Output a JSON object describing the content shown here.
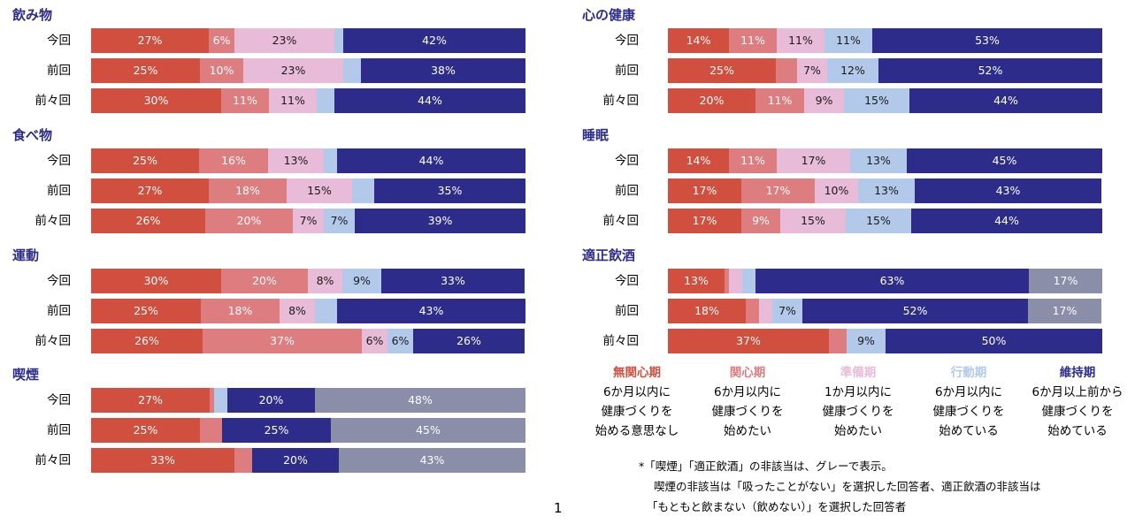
{
  "colors": {
    "mukanshin": "#d04f3e",
    "kanshin": "#de7d80",
    "junbi": "#e8bcd8",
    "kodo": "#b2c9ea",
    "iji": "#2e2c8a",
    "na": "#8b8ea9",
    "title": "#2e2c8a"
  },
  "row_labels": [
    "今回",
    "前回",
    "前々回"
  ],
  "chart_data": {
    "type": "bar",
    "orientation": "horizontal",
    "stacked": true,
    "percent": true,
    "series_names": [
      "無関心期",
      "関心期",
      "準備期",
      "行動期",
      "維持期",
      "非該当"
    ],
    "panels": [
      {
        "title": "飲み物",
        "rows": [
          {
            "label": "今回",
            "values": [
              27,
              6,
              23,
              2,
              42,
              0
            ],
            "labels": [
              "27%",
              "6%",
              "23%",
              "",
              "42%",
              ""
            ]
          },
          {
            "label": "前回",
            "values": [
              25,
              10,
              23,
              4,
              38,
              0
            ],
            "labels": [
              "25%",
              "10%",
              "23%",
              "",
              "38%",
              ""
            ]
          },
          {
            "label": "前々回",
            "values": [
              30,
              11,
              11,
              4,
              44,
              0
            ],
            "labels": [
              "30%",
              "11%",
              "11%",
              "",
              "44%",
              ""
            ]
          }
        ]
      },
      {
        "title": "食べ物",
        "rows": [
          {
            "label": "今回",
            "values": [
              25,
              16,
              13,
              3,
              44,
              0
            ],
            "labels": [
              "25%",
              "16%",
              "13%",
              "",
              "44%",
              ""
            ]
          },
          {
            "label": "前回",
            "values": [
              27,
              18,
              15,
              5,
              35,
              0
            ],
            "labels": [
              "27%",
              "18%",
              "15%",
              "",
              "35%",
              ""
            ]
          },
          {
            "label": "前々回",
            "values": [
              26,
              20,
              7,
              7,
              39,
              0
            ],
            "labels": [
              "26%",
              "20%",
              "7%",
              "7%",
              "39%",
              ""
            ]
          }
        ]
      },
      {
        "title": "運動",
        "rows": [
          {
            "label": "今回",
            "values": [
              30,
              20,
              8,
              9,
              33,
              0
            ],
            "labels": [
              "30%",
              "20%",
              "8%",
              "9%",
              "33%",
              ""
            ]
          },
          {
            "label": "前回",
            "values": [
              25,
              18,
              8,
              5,
              43,
              0
            ],
            "labels": [
              "25%",
              "18%",
              "8%",
              "",
              "43%",
              ""
            ]
          },
          {
            "label": "前々回",
            "values": [
              26,
              37,
              6,
              6,
              26,
              0
            ],
            "labels": [
              "26%",
              "37%",
              "6%",
              "6%",
              "26%",
              ""
            ]
          }
        ]
      },
      {
        "title": "喫煙",
        "rows": [
          {
            "label": "今回",
            "values": [
              27,
              1,
              0,
              3,
              20,
              48
            ],
            "labels": [
              "27%",
              "",
              "",
              "",
              "20%",
              "48%"
            ]
          },
          {
            "label": "前回",
            "values": [
              25,
              5,
              0,
              0,
              25,
              45
            ],
            "labels": [
              "25%",
              "",
              "",
              "",
              "25%",
              "45%"
            ]
          },
          {
            "label": "前々回",
            "values": [
              33,
              4,
              0,
              0,
              20,
              43
            ],
            "labels": [
              "33%",
              "",
              "",
              "",
              "20%",
              "43%"
            ]
          }
        ]
      },
      {
        "title": "心の健康",
        "rows": [
          {
            "label": "今回",
            "values": [
              14,
              11,
              11,
              11,
              53,
              0
            ],
            "labels": [
              "14%",
              "11%",
              "11%",
              "11%",
              "53%",
              ""
            ]
          },
          {
            "label": "前回",
            "values": [
              25,
              5,
              7,
              12,
              52,
              0
            ],
            "labels": [
              "25%",
              "",
              "7%",
              "12%",
              "52%",
              ""
            ]
          },
          {
            "label": "前々回",
            "values": [
              20,
              11,
              9,
              15,
              44,
              0
            ],
            "labels": [
              "20%",
              "11%",
              "9%",
              "15%",
              "44%",
              ""
            ]
          }
        ]
      },
      {
        "title": "睡眠",
        "rows": [
          {
            "label": "今回",
            "values": [
              14,
              11,
              17,
              13,
              45,
              0
            ],
            "labels": [
              "14%",
              "11%",
              "17%",
              "13%",
              "45%",
              ""
            ]
          },
          {
            "label": "前回",
            "values": [
              17,
              17,
              10,
              13,
              43,
              0
            ],
            "labels": [
              "17%",
              "17%",
              "10%",
              "13%",
              "43%",
              ""
            ]
          },
          {
            "label": "前々回",
            "values": [
              17,
              9,
              15,
              15,
              44,
              0
            ],
            "labels": [
              "17%",
              "9%",
              "15%",
              "15%",
              "44%",
              ""
            ]
          }
        ]
      },
      {
        "title": "適正飲酒",
        "rows": [
          {
            "label": "今回",
            "values": [
              13,
              1,
              3,
              3,
              63,
              17
            ],
            "labels": [
              "13%",
              "",
              "",
              "",
              "63%",
              "17%"
            ]
          },
          {
            "label": "前回",
            "values": [
              18,
              3,
              3,
              7,
              52,
              17
            ],
            "labels": [
              "18%",
              "",
              "",
              "7%",
              "52%",
              "17%"
            ]
          },
          {
            "label": "前々回",
            "values": [
              37,
              4,
              0,
              9,
              50,
              0
            ],
            "labels": [
              "37%",
              "",
              "",
              "9%",
              "50%",
              ""
            ]
          }
        ]
      }
    ]
  },
  "legend": [
    {
      "name": "無関心期",
      "lines": [
        "6か月以内に",
        "健康づくりを",
        "始める意思なし"
      ]
    },
    {
      "name": "関心期",
      "lines": [
        "6か月以内に",
        "健康づくりを",
        "始めたい"
      ]
    },
    {
      "name": "準備期",
      "lines": [
        "1か月以内に",
        "健康づくりを",
        "始めたい"
      ]
    },
    {
      "name": "行動期",
      "lines": [
        "6か月以内に",
        "健康づくりを",
        "始めている"
      ]
    },
    {
      "name": "維持期",
      "lines": [
        "6か月以上前から",
        "健康づくりを",
        "始めている"
      ]
    }
  ],
  "footnote": [
    "*「喫煙」「適正飲酒」の非該当は、グレーで表示。",
    "喫煙の非該当は「吸ったことがない」を選択した回答者、適正飲酒の非該当は",
    "「もともと飲まない（飲めない）」を選択した回答者"
  ],
  "page_number": "1"
}
